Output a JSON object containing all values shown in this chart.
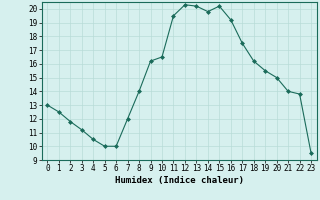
{
  "x": [
    0,
    1,
    2,
    3,
    4,
    5,
    6,
    7,
    8,
    9,
    10,
    11,
    12,
    13,
    14,
    15,
    16,
    17,
    18,
    19,
    20,
    21,
    22,
    23
  ],
  "y": [
    13,
    12.5,
    11.8,
    11.2,
    10.5,
    10.0,
    10.0,
    12.0,
    14.0,
    16.2,
    16.5,
    19.5,
    20.3,
    20.2,
    19.8,
    20.2,
    19.2,
    17.5,
    16.2,
    15.5,
    15.0,
    14.0,
    13.8,
    9.5
  ],
  "line_color": "#1a6b5a",
  "marker": "D",
  "marker_size": 2,
  "bg_color": "#d6f0ee",
  "grid_color": "#b8dcd8",
  "xlabel": "Humidex (Indice chaleur)",
  "xlim": [
    -0.5,
    23.5
  ],
  "ylim": [
    9,
    20.5
  ],
  "yticks": [
    9,
    10,
    11,
    12,
    13,
    14,
    15,
    16,
    17,
    18,
    19,
    20
  ],
  "xticks": [
    0,
    1,
    2,
    3,
    4,
    5,
    6,
    7,
    8,
    9,
    10,
    11,
    12,
    13,
    14,
    15,
    16,
    17,
    18,
    19,
    20,
    21,
    22,
    23
  ],
  "tick_label_fontsize": 5.5,
  "xlabel_fontsize": 6.5
}
